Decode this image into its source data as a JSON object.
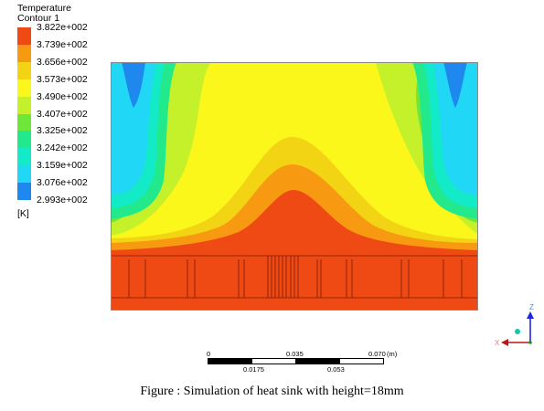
{
  "legend": {
    "title": "Temperature",
    "subtitle": "Contour 1",
    "unit": "[K]",
    "levels": [
      {
        "label": "3.822e+002",
        "color": "#f04a14"
      },
      {
        "label": "3.739e+002",
        "color": "#f79a12"
      },
      {
        "label": "3.656e+002",
        "color": "#f2d414"
      },
      {
        "label": "3.573e+002",
        "color": "#fbf71a"
      },
      {
        "label": "3.490e+002",
        "color": "#c5f12a"
      },
      {
        "label": "3.407e+002",
        "color": "#6ee63a"
      },
      {
        "label": "3.325e+002",
        "color": "#22ea8c"
      },
      {
        "label": "3.242e+002",
        "color": "#12eac8"
      },
      {
        "label": "3.159e+002",
        "color": "#20d8f6"
      },
      {
        "label": "3.076e+002",
        "color": "#1e88ee"
      },
      {
        "label": "2.993e+002",
        "color": ""
      }
    ]
  },
  "scale_bar": {
    "top_labels": [
      "0",
      "0.035",
      "0.070"
    ],
    "unit": "(m)",
    "bottom_labels": [
      "0.0175",
      "0.053"
    ]
  },
  "triad": {
    "axes": [
      "Z",
      "X"
    ]
  },
  "caption": "Figure : Simulation of heat sink with height=18mm"
}
